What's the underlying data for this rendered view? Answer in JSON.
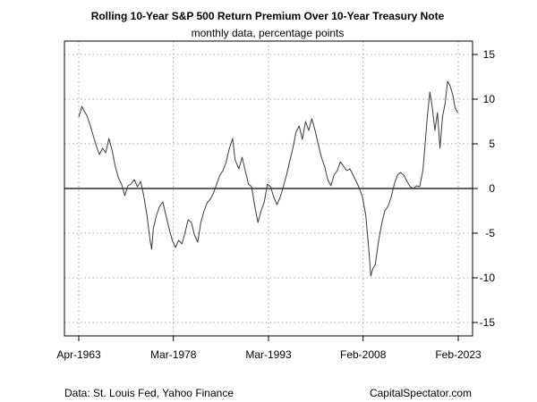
{
  "chart_data": {
    "type": "line",
    "title": "Rolling 10-Year S&P 500 Return Premium Over 10-Year Treasury Note",
    "subtitle": "monthly data, percentage points",
    "xlabel": "",
    "ylabel": "",
    "x_tick_labels": [
      "Apr-1963",
      "Mar-1978",
      "Mar-1993",
      "Feb-2008",
      "Feb-2023"
    ],
    "x_tick_values": [
      1963.25,
      1978.17,
      1993.17,
      2008.08,
      2023.08
    ],
    "xlim": [
      1963.25,
      2023.08
    ],
    "y_ticks": [
      -15,
      -10,
      -5,
      0,
      5,
      10,
      15
    ],
    "ylim": [
      -16.5,
      16.5
    ],
    "reference_line": 0,
    "grid": true,
    "series": [
      {
        "points": [
          [
            1963.25,
            8.0
          ],
          [
            1963.5,
            8.6
          ],
          [
            1963.75,
            9.2
          ],
          [
            1964.0,
            8.8
          ],
          [
            1964.5,
            8.2
          ],
          [
            1965.0,
            7.2
          ],
          [
            1965.5,
            6.0
          ],
          [
            1966.0,
            4.8
          ],
          [
            1966.5,
            3.8
          ],
          [
            1967.0,
            4.5
          ],
          [
            1967.5,
            4.0
          ],
          [
            1968.0,
            5.6
          ],
          [
            1968.5,
            4.3
          ],
          [
            1969.0,
            2.5
          ],
          [
            1969.5,
            1.2
          ],
          [
            1970.0,
            0.5
          ],
          [
            1970.5,
            -0.8
          ],
          [
            1971.0,
            0.3
          ],
          [
            1971.5,
            0.5
          ],
          [
            1972.0,
            1.0
          ],
          [
            1972.5,
            0.2
          ],
          [
            1973.0,
            0.8
          ],
          [
            1973.5,
            -0.8
          ],
          [
            1974.0,
            -3.0
          ],
          [
            1974.5,
            -5.8
          ],
          [
            1974.75,
            -6.8
          ],
          [
            1975.0,
            -4.5
          ],
          [
            1975.5,
            -3.0
          ],
          [
            1976.0,
            -2.0
          ],
          [
            1976.5,
            -1.5
          ],
          [
            1977.0,
            -3.0
          ],
          [
            1977.5,
            -4.5
          ],
          [
            1978.0,
            -5.8
          ],
          [
            1978.5,
            -6.6
          ],
          [
            1979.0,
            -5.8
          ],
          [
            1979.5,
            -6.2
          ],
          [
            1980.0,
            -5.0
          ],
          [
            1980.5,
            -3.5
          ],
          [
            1981.0,
            -3.8
          ],
          [
            1981.5,
            -5.2
          ],
          [
            1982.0,
            -6.0
          ],
          [
            1982.5,
            -3.8
          ],
          [
            1983.0,
            -2.5
          ],
          [
            1983.5,
            -1.6
          ],
          [
            1984.0,
            -1.2
          ],
          [
            1984.5,
            -0.5
          ],
          [
            1985.0,
            0.5
          ],
          [
            1985.5,
            1.5
          ],
          [
            1986.0,
            2.0
          ],
          [
            1986.5,
            3.0
          ],
          [
            1987.0,
            4.5
          ],
          [
            1987.5,
            5.6
          ],
          [
            1987.9,
            3.2
          ],
          [
            1988.5,
            2.2
          ],
          [
            1989.0,
            3.5
          ],
          [
            1989.5,
            2.0
          ],
          [
            1990.0,
            0.5
          ],
          [
            1990.5,
            0.2
          ],
          [
            1991.0,
            -2.0
          ],
          [
            1991.5,
            -3.8
          ],
          [
            1992.0,
            -2.5
          ],
          [
            1992.5,
            -1.5
          ],
          [
            1993.0,
            0.5
          ],
          [
            1993.5,
            0.2
          ],
          [
            1994.0,
            -1.0
          ],
          [
            1994.5,
            -1.8
          ],
          [
            1995.0,
            -1.0
          ],
          [
            1995.5,
            0.2
          ],
          [
            1996.0,
            1.5
          ],
          [
            1996.5,
            3.0
          ],
          [
            1997.0,
            4.5
          ],
          [
            1997.5,
            6.3
          ],
          [
            1998.0,
            7.0
          ],
          [
            1998.5,
            5.5
          ],
          [
            1999.0,
            7.5
          ],
          [
            1999.5,
            6.5
          ],
          [
            2000.0,
            7.8
          ],
          [
            2000.5,
            6.5
          ],
          [
            2001.0,
            5.0
          ],
          [
            2001.5,
            3.5
          ],
          [
            2002.0,
            2.5
          ],
          [
            2002.5,
            1.0
          ],
          [
            2003.0,
            0.3
          ],
          [
            2003.5,
            1.5
          ],
          [
            2004.0,
            2.0
          ],
          [
            2004.5,
            3.0
          ],
          [
            2005.0,
            2.5
          ],
          [
            2005.5,
            2.0
          ],
          [
            2006.0,
            2.2
          ],
          [
            2006.5,
            1.5
          ],
          [
            2007.0,
            0.8
          ],
          [
            2007.5,
            0.0
          ],
          [
            2008.0,
            -1.0
          ],
          [
            2008.5,
            -3.0
          ],
          [
            2009.0,
            -7.0
          ],
          [
            2009.3,
            -9.8
          ],
          [
            2009.6,
            -9.0
          ],
          [
            2010.0,
            -8.5
          ],
          [
            2010.5,
            -6.0
          ],
          [
            2011.0,
            -4.0
          ],
          [
            2011.5,
            -2.5
          ],
          [
            2012.0,
            -2.0
          ],
          [
            2012.5,
            -1.0
          ],
          [
            2013.0,
            0.5
          ],
          [
            2013.5,
            1.5
          ],
          [
            2014.0,
            1.8
          ],
          [
            2014.5,
            1.5
          ],
          [
            2015.0,
            0.8
          ],
          [
            2015.5,
            0.2
          ],
          [
            2016.0,
            0.0
          ],
          [
            2016.5,
            0.3
          ],
          [
            2017.0,
            0.2
          ],
          [
            2017.5,
            2.0
          ],
          [
            2017.8,
            4.5
          ],
          [
            2018.2,
            8.0
          ],
          [
            2018.6,
            10.8
          ],
          [
            2019.0,
            9.0
          ],
          [
            2019.4,
            6.5
          ],
          [
            2019.8,
            8.5
          ],
          [
            2020.2,
            4.5
          ],
          [
            2020.6,
            8.0
          ],
          [
            2021.0,
            9.5
          ],
          [
            2021.4,
            12.0
          ],
          [
            2021.8,
            11.5
          ],
          [
            2022.2,
            10.5
          ],
          [
            2022.6,
            9.0
          ],
          [
            2022.9,
            8.6
          ],
          [
            2023.08,
            8.5
          ]
        ]
      }
    ]
  },
  "footer": {
    "source": "Data: St. Louis Fed, Yahoo Finance",
    "credit": "CapitalSpectator.com"
  },
  "colors": {
    "series": "#3a3a3a",
    "grid": "#a0a0a0",
    "axis": "#000000"
  }
}
